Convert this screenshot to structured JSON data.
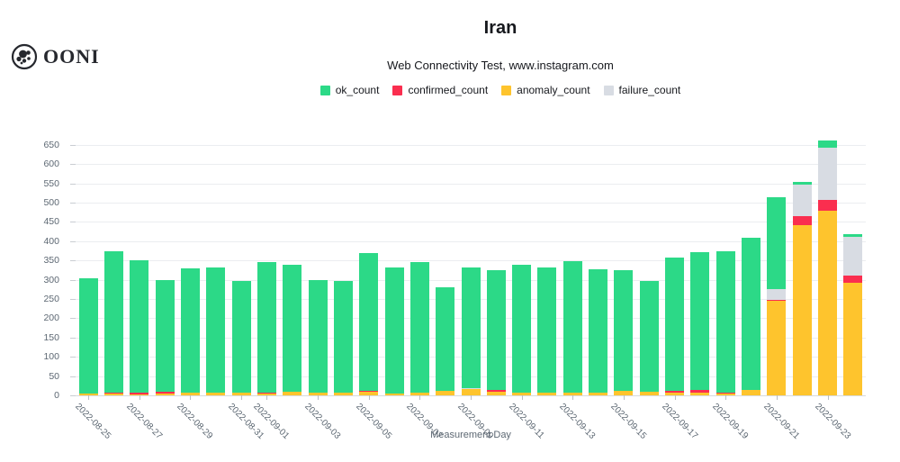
{
  "header": {
    "logo_text": "OONI",
    "title": "Iran",
    "subtitle": "Web Connectivity Test, www.instagram.com"
  },
  "legend": [
    {
      "label": "ok_count",
      "color": "#2cd987"
    },
    {
      "label": "confirmed_count",
      "color": "#fa2e4f"
    },
    {
      "label": "anomaly_count",
      "color": "#fec42d"
    },
    {
      "label": "failure_count",
      "color": "#d8dce3"
    }
  ],
  "chart_data": {
    "type": "bar",
    "stacked": true,
    "title": "Iran",
    "subtitle": "Web Connectivity Test, www.instagram.com",
    "xlabel": "Measurement Day",
    "ylabel": "",
    "ylim": [
      0,
      680
    ],
    "yticks": [
      0,
      50,
      100,
      150,
      200,
      250,
      300,
      350,
      400,
      450,
      500,
      550,
      600,
      650
    ],
    "grid": true,
    "legend_position": "top-center",
    "categories": [
      "2022-08-25",
      "2022-08-26",
      "2022-08-27",
      "2022-08-28",
      "2022-08-29",
      "2022-08-30",
      "2022-08-31",
      "2022-09-01",
      "2022-09-02",
      "2022-09-03",
      "2022-09-04",
      "2022-09-05",
      "2022-09-06",
      "2022-09-07",
      "2022-09-08",
      "2022-09-09",
      "2022-09-10",
      "2022-09-11",
      "2022-09-12",
      "2022-09-13",
      "2022-09-14",
      "2022-09-15",
      "2022-09-16",
      "2022-09-17",
      "2022-09-18",
      "2022-09-19",
      "2022-09-20",
      "2022-09-21",
      "2022-09-22",
      "2022-09-23",
      "2022-09-24"
    ],
    "labeled_tick_indices": [
      0,
      2,
      4,
      6,
      7,
      9,
      11,
      13,
      15,
      17,
      19,
      21,
      23,
      25,
      27,
      29
    ],
    "stack_order": [
      "anomaly_count",
      "confirmed_count",
      "failure_count",
      "ok_count"
    ],
    "series": [
      {
        "name": "ok_count",
        "color": "#2cd987",
        "values": [
          300,
          366,
          344,
          291,
          323,
          327,
          291,
          338,
          330,
          294,
          289,
          358,
          329,
          337,
          268,
          313,
          312,
          332,
          326,
          340,
          320,
          313,
          286,
          346,
          358,
          365,
          395,
          239,
          6,
          20,
          7
        ]
      },
      {
        "name": "confirmed_count",
        "color": "#fa2e4f",
        "values": [
          0,
          3,
          4,
          5,
          0,
          0,
          0,
          2,
          0,
          0,
          0,
          2,
          0,
          0,
          0,
          0,
          3,
          0,
          0,
          0,
          0,
          0,
          0,
          4,
          5,
          4,
          0,
          3,
          23,
          26,
          20
        ]
      },
      {
        "name": "anomaly_count",
        "color": "#fec42d",
        "values": [
          5,
          5,
          2,
          4,
          7,
          6,
          7,
          5,
          9,
          6,
          8,
          10,
          4,
          8,
          12,
          17,
          10,
          8,
          6,
          8,
          8,
          12,
          10,
          8,
          8,
          4,
          15,
          245,
          441,
          480,
          292
        ]
      },
      {
        "name": "failure_count",
        "color": "#d8dce3",
        "values": [
          0,
          0,
          0,
          0,
          0,
          0,
          0,
          0,
          0,
          0,
          0,
          0,
          0,
          0,
          0,
          2,
          0,
          0,
          0,
          0,
          0,
          0,
          0,
          0,
          0,
          0,
          0,
          28,
          84,
          136,
          99
        ]
      }
    ]
  }
}
